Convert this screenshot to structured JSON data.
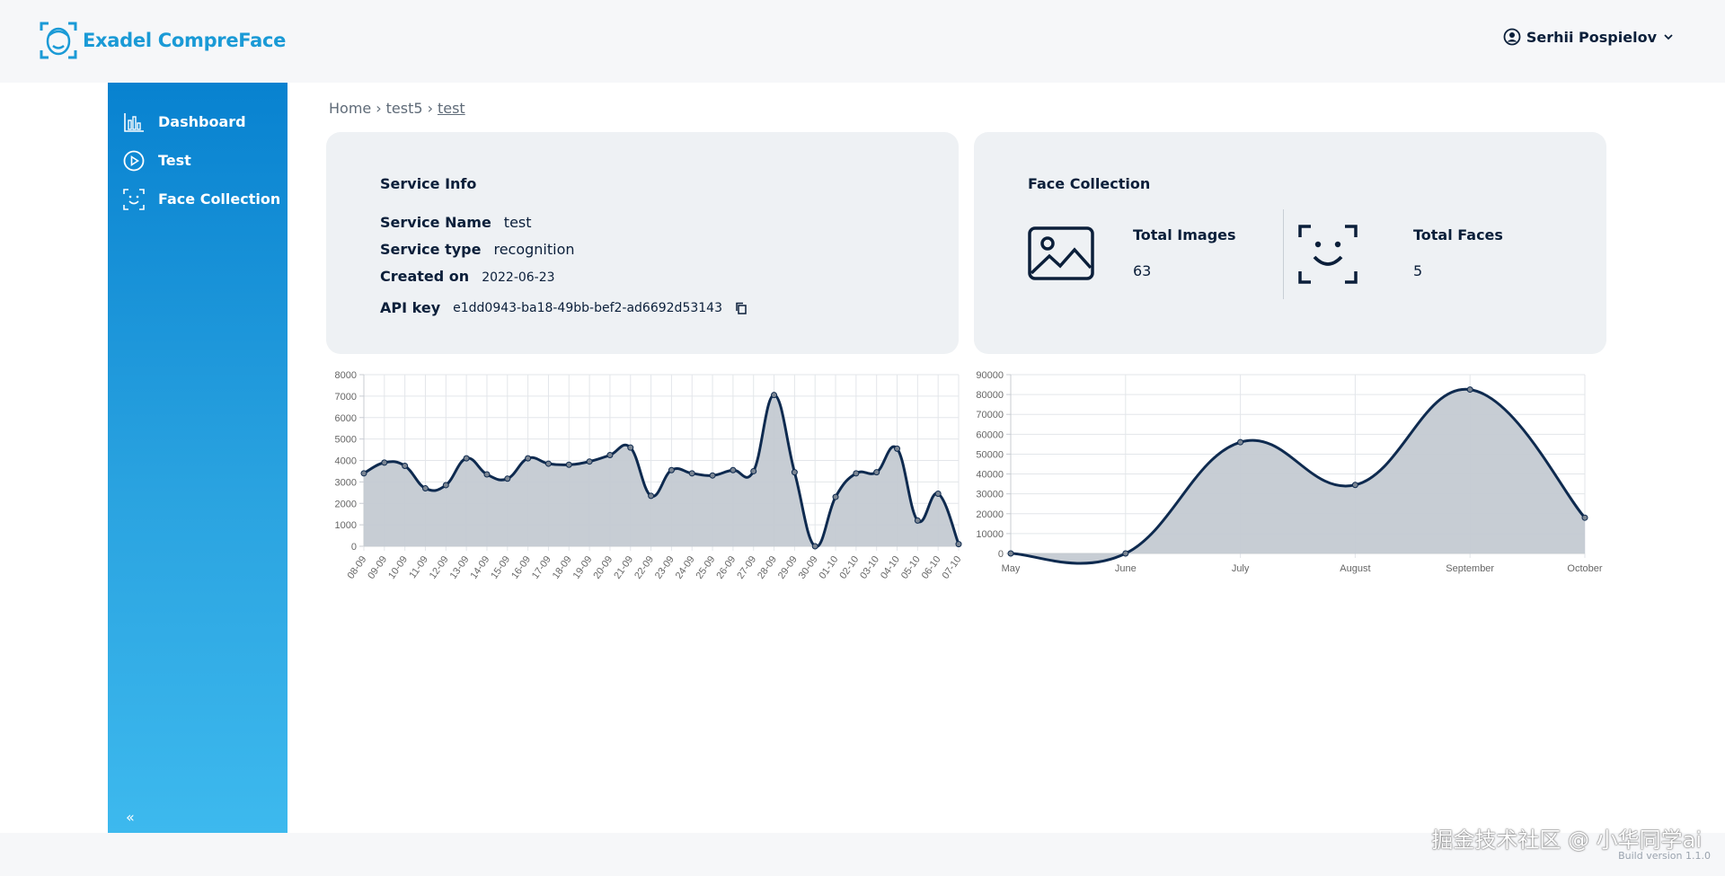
{
  "app": {
    "name": "Exadel CompreFace",
    "build": "Build version 1.1.0"
  },
  "user": {
    "name": "Serhii Pospielov"
  },
  "sidebar": {
    "items": [
      {
        "label": "Dashboard",
        "icon": "bar-chart-icon"
      },
      {
        "label": "Test",
        "icon": "play-circle-icon"
      },
      {
        "label": "Face Collection",
        "icon": "face-scan-icon"
      }
    ],
    "collapse_label": "«"
  },
  "breadcrumb": {
    "home": "Home",
    "sep1": "›",
    "app": "test5",
    "sep2": "›",
    "service": "test"
  },
  "service_info": {
    "title": "Service Info",
    "name_label": "Service Name",
    "name_value": "test",
    "type_label": "Service type",
    "type_value": "recognition",
    "created_label": "Created on",
    "created_value": "2022-06-23",
    "api_label": "API key",
    "api_value": "e1dd0943-ba18-49bb-bef2-ad6692d53143"
  },
  "face_collection": {
    "title": "Face Collection",
    "images_label": "Total Images",
    "images_value": "63",
    "faces_label": "Total Faces",
    "faces_value": "5"
  },
  "watermark": "掘金技术社区 @ 小华同学ai",
  "colors": {
    "accent": "#1a9ad6",
    "line": "#0e2a4f",
    "fill": "#c4cad2"
  },
  "chart_data": [
    {
      "type": "area",
      "categories": [
        "08-09",
        "09-09",
        "10-09",
        "11-09",
        "12-09",
        "13-09",
        "14-09",
        "15-09",
        "16-09",
        "17-09",
        "18-09",
        "19-09",
        "20-09",
        "21-09",
        "22-09",
        "23-09",
        "24-09",
        "25-09",
        "26-09",
        "27-09",
        "28-09",
        "29-09",
        "30-09",
        "01-10",
        "02-10",
        "03-10",
        "04-10",
        "05-10",
        "06-10",
        "07-10"
      ],
      "values": [
        3400,
        3900,
        3750,
        2700,
        2850,
        4100,
        3350,
        3150,
        4100,
        3850,
        3800,
        3950,
        4250,
        4600,
        2350,
        3550,
        3400,
        3300,
        3550,
        3500,
        7050,
        3450,
        0,
        2300,
        3400,
        3450,
        4550,
        1200,
        2450,
        100
      ],
      "ylim": [
        0,
        8000
      ],
      "yticks": [
        "0",
        "1000",
        "2000",
        "3000",
        "4000",
        "5000",
        "6000",
        "7000",
        "8000"
      ],
      "grid": true
    },
    {
      "type": "area",
      "categories": [
        "May",
        "June",
        "July",
        "August",
        "September",
        "October"
      ],
      "values": [
        0,
        0,
        56000,
        34500,
        82500,
        18000
      ],
      "ylim": [
        0,
        90000
      ],
      "yticks": [
        "0",
        "10000",
        "20000",
        "30000",
        "40000",
        "50000",
        "60000",
        "70000",
        "80000",
        "90000"
      ],
      "grid": true
    }
  ]
}
